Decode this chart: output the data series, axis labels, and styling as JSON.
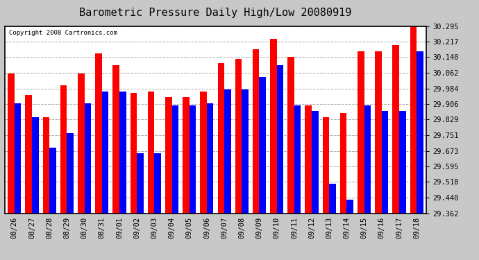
{
  "title": "Barometric Pressure Daily High/Low 20080919",
  "copyright": "Copyright 2008 Cartronics.com",
  "dates": [
    "08/26",
    "08/27",
    "08/28",
    "08/29",
    "08/30",
    "08/31",
    "09/01",
    "09/02",
    "09/03",
    "09/04",
    "09/05",
    "09/06",
    "09/07",
    "09/08",
    "09/09",
    "09/10",
    "09/11",
    "09/12",
    "09/13",
    "09/14",
    "09/15",
    "09/16",
    "09/17",
    "09/18"
  ],
  "highs": [
    30.06,
    29.95,
    29.84,
    30.0,
    30.06,
    30.16,
    30.1,
    29.96,
    29.97,
    29.94,
    29.94,
    29.97,
    30.11,
    30.13,
    30.18,
    30.23,
    30.14,
    29.9,
    29.84,
    29.86,
    30.17,
    30.17,
    30.2,
    30.295
  ],
  "lows": [
    29.91,
    29.84,
    29.69,
    29.76,
    29.91,
    29.97,
    29.97,
    29.66,
    29.66,
    29.9,
    29.9,
    29.91,
    29.98,
    29.98,
    30.04,
    30.1,
    29.9,
    29.87,
    29.51,
    29.43,
    29.9,
    29.87,
    29.87,
    30.17
  ],
  "high_color": "#ff0000",
  "low_color": "#0000ff",
  "fig_bg_color": "#c8c8c8",
  "plot_bg_color": "#ffffff",
  "grid_color": "#aaaaaa",
  "title_fontsize": 11,
  "tick_fontsize": 7.5,
  "ymin": 29.362,
  "ymax": 30.295,
  "yticks": [
    29.362,
    29.44,
    29.518,
    29.595,
    29.673,
    29.751,
    29.829,
    29.906,
    29.984,
    30.062,
    30.14,
    30.217,
    30.295
  ],
  "bar_width": 0.38
}
